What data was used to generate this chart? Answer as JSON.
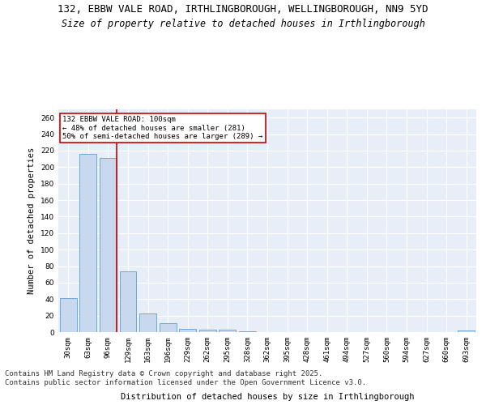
{
  "title_line1": "132, EBBW VALE ROAD, IRTHLINGBOROUGH, WELLINGBOROUGH, NN9 5YD",
  "title_line2": "Size of property relative to detached houses in Irthlingborough",
  "xlabel": "Distribution of detached houses by size in Irthlingborough",
  "ylabel": "Number of detached properties",
  "bar_color": "#c8d9ef",
  "bar_edge_color": "#6aaad4",
  "background_color": "#e8eef8",
  "grid_color": "#ffffff",
  "annotation_text": "132 EBBW VALE ROAD: 100sqm\n← 48% of detached houses are smaller (281)\n50% of semi-detached houses are larger (289) →",
  "vline_color": "#cc0000",
  "annotation_box_edge": "#cc0000",
  "categories": [
    "30sqm",
    "63sqm",
    "96sqm",
    "129sqm",
    "163sqm",
    "196sqm",
    "229sqm",
    "262sqm",
    "295sqm",
    "328sqm",
    "362sqm",
    "395sqm",
    "428sqm",
    "461sqm",
    "494sqm",
    "527sqm",
    "560sqm",
    "594sqm",
    "627sqm",
    "660sqm",
    "693sqm"
  ],
  "values": [
    41,
    216,
    211,
    74,
    23,
    11,
    4,
    3,
    3,
    1,
    0,
    0,
    0,
    0,
    0,
    0,
    0,
    0,
    0,
    0,
    2
  ],
  "ylim": [
    0,
    270
  ],
  "yticks": [
    0,
    20,
    40,
    60,
    80,
    100,
    120,
    140,
    160,
    180,
    200,
    220,
    240,
    260
  ],
  "footer_line1": "Contains HM Land Registry data © Crown copyright and database right 2025.",
  "footer_line2": "Contains public sector information licensed under the Open Government Licence v3.0.",
  "title_fontsize": 9,
  "subtitle_fontsize": 8.5,
  "tick_fontsize": 6.5,
  "label_fontsize": 7.5,
  "footer_fontsize": 6.5
}
